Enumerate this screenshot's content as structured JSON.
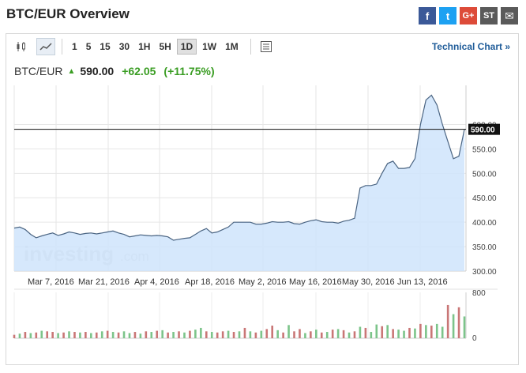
{
  "title": "BTC/EUR Overview",
  "share": [
    {
      "icon": "facebook-icon",
      "glyph": "f",
      "color": "#3b5998"
    },
    {
      "icon": "twitter-icon",
      "glyph": "t",
      "color": "#1da1f2"
    },
    {
      "icon": "google-plus-icon",
      "glyph": "G+",
      "color": "#dd4b39"
    },
    {
      "icon": "stocktwits-icon",
      "glyph": "ST",
      "color": "#5a5a5a"
    },
    {
      "icon": "email-icon",
      "glyph": "✉",
      "color": "#5a5a5a"
    }
  ],
  "toolbar": {
    "intervals": [
      "1",
      "5",
      "15",
      "30",
      "1H",
      "5H",
      "1D",
      "1W",
      "1M"
    ],
    "active_interval": "1D",
    "technical_link": "Technical Chart »"
  },
  "quote": {
    "pair": "BTC/EUR",
    "price": "590.00",
    "change": "+62.05",
    "change_pct": "(+11.75%)"
  },
  "watermark": {
    "main": "investing",
    "suffix": ".com"
  },
  "chart_data": {
    "type": "area",
    "x_labels": [
      "Mar 7, 2016",
      "Mar 21, 2016",
      "Apr 4, 2016",
      "Apr 18, 2016",
      "May 2, 2016",
      "May 16, 2016",
      "May 30, 2016",
      "Jun 13, 2016"
    ],
    "y_ticks": [
      "300.00",
      "350.00",
      "400.00",
      "450.00",
      "500.00",
      "550.00",
      "600.00"
    ],
    "ylim": [
      300,
      680
    ],
    "current_price_label": "590.00",
    "current_price": 590,
    "series": [
      {
        "values": [
          388,
          390,
          385,
          375,
          368,
          372,
          375,
          378,
          373,
          376,
          380,
          378,
          375,
          377,
          378,
          376,
          378,
          380,
          382,
          378,
          375,
          370,
          372,
          374,
          373,
          372,
          373,
          372,
          370,
          363,
          365,
          367,
          368,
          375,
          382,
          387,
          378,
          380,
          385,
          390,
          400,
          400,
          400,
          400,
          396,
          396,
          398,
          401,
          400,
          400,
          401,
          397,
          396,
          400,
          403,
          405,
          401,
          400,
          400,
          398,
          402,
          404,
          408,
          470,
          475,
          475,
          478,
          500,
          520,
          525,
          510,
          510,
          512,
          530,
          600,
          650,
          660,
          640,
          600,
          565,
          530,
          535,
          590
        ]
      }
    ],
    "volume": {
      "ticks": [
        "800",
        "0"
      ],
      "ylim": [
        0,
        800
      ],
      "values": [
        60,
        80,
        110,
        90,
        100,
        130,
        120,
        110,
        90,
        100,
        120,
        110,
        100,
        110,
        90,
        100,
        120,
        130,
        110,
        100,
        120,
        90,
        110,
        80,
        120,
        110,
        130,
        140,
        100,
        110,
        120,
        100,
        130,
        150,
        180,
        120,
        110,
        100,
        120,
        130,
        110,
        120,
        180,
        120,
        100,
        130,
        160,
        220,
        140,
        100,
        230,
        120,
        160,
        90,
        120,
        150,
        100,
        110,
        150,
        160,
        140,
        100,
        120,
        200,
        180,
        110,
        240,
        210,
        230,
        160,
        150,
        130,
        180,
        170,
        250,
        230,
        220,
        250,
        200,
        580,
        420,
        540,
        380
      ],
      "colors": [
        "r",
        "g",
        "r",
        "g",
        "r",
        "g",
        "r",
        "r",
        "g",
        "r",
        "g",
        "r",
        "g",
        "r",
        "g",
        "r",
        "g",
        "r",
        "g",
        "r",
        "g",
        "g",
        "r",
        "g",
        "r",
        "g",
        "r",
        "g",
        "r",
        "g",
        "r",
        "g",
        "r",
        "g",
        "g",
        "r",
        "g",
        "r",
        "r",
        "g",
        "r",
        "g",
        "r",
        "g",
        "r",
        "g",
        "r",
        "r",
        "g",
        "r",
        "g",
        "r",
        "r",
        "g",
        "r",
        "g",
        "r",
        "g",
        "r",
        "g",
        "r",
        "g",
        "r",
        "g",
        "r",
        "g",
        "g",
        "r",
        "g",
        "r",
        "g",
        "g",
        "r",
        "g",
        "r",
        "g",
        "r",
        "g",
        "g",
        "r",
        "g",
        "r",
        "g"
      ]
    }
  }
}
